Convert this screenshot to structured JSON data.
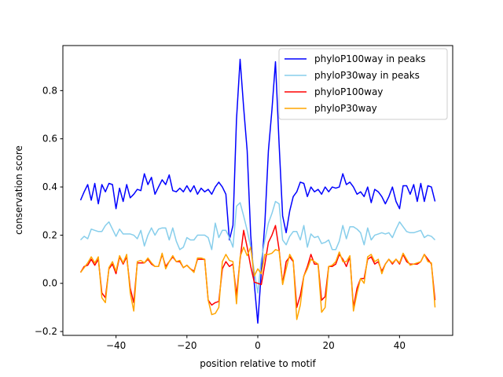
{
  "chart_data": {
    "type": "line",
    "title": "",
    "xlabel": "position relative to motif",
    "ylabel": "conservation score",
    "xlim": [
      -55,
      55
    ],
    "ylim": [
      -0.216,
      0.987
    ],
    "xticks": [
      -40,
      -20,
      0,
      20,
      40
    ],
    "xtick_labels": [
      "−40",
      "−20",
      "0",
      "20",
      "40"
    ],
    "yticks": [
      -0.2,
      0.0,
      0.2,
      0.4,
      0.6,
      0.8
    ],
    "ytick_labels": [
      "−0.2",
      "0.0",
      "0.2",
      "0.4",
      "0.6",
      "0.8"
    ],
    "grid": false,
    "legend_position": "top-right",
    "x_start": -50,
    "x_step": 1,
    "series": [
      {
        "name": "phyloP100way in peaks",
        "color": "#0000ff",
        "values": [
          0.345,
          0.38,
          0.41,
          0.345,
          0.415,
          0.33,
          0.41,
          0.38,
          0.415,
          0.41,
          0.31,
          0.395,
          0.34,
          0.41,
          0.355,
          0.37,
          0.39,
          0.385,
          0.455,
          0.41,
          0.44,
          0.37,
          0.4,
          0.43,
          0.41,
          0.45,
          0.385,
          0.38,
          0.395,
          0.38,
          0.405,
          0.38,
          0.405,
          0.37,
          0.395,
          0.38,
          0.39,
          0.37,
          0.4,
          0.42,
          0.4,
          0.37,
          0.18,
          0.24,
          0.68,
          0.93,
          0.73,
          0.55,
          0.2,
          0.0,
          -0.165,
          0.05,
          0.25,
          0.55,
          0.72,
          0.92,
          0.58,
          0.28,
          0.21,
          0.3,
          0.36,
          0.38,
          0.42,
          0.415,
          0.36,
          0.4,
          0.38,
          0.39,
          0.37,
          0.4,
          0.38,
          0.4,
          0.395,
          0.4,
          0.455,
          0.41,
          0.42,
          0.4,
          0.37,
          0.38,
          0.36,
          0.4,
          0.335,
          0.39,
          0.38,
          0.36,
          0.33,
          0.36,
          0.4,
          0.34,
          0.31,
          0.405,
          0.405,
          0.37,
          0.41,
          0.34,
          0.415,
          0.34,
          0.405,
          0.4,
          0.34
        ]
      },
      {
        "name": "phyloP30way in peaks",
        "color": "#87ceeb",
        "values": [
          0.18,
          0.195,
          0.185,
          0.225,
          0.22,
          0.215,
          0.215,
          0.24,
          0.255,
          0.225,
          0.195,
          0.225,
          0.205,
          0.205,
          0.205,
          0.2,
          0.185,
          0.22,
          0.155,
          0.2,
          0.23,
          0.2,
          0.225,
          0.23,
          0.23,
          0.18,
          0.23,
          0.175,
          0.14,
          0.15,
          0.19,
          0.18,
          0.18,
          0.2,
          0.2,
          0.2,
          0.19,
          0.14,
          0.25,
          0.19,
          0.22,
          0.22,
          0.19,
          0.15,
          0.32,
          0.335,
          0.28,
          0.22,
          0.15,
          0.05,
          -0.04,
          0.1,
          0.18,
          0.25,
          0.29,
          0.34,
          0.33,
          0.18,
          0.16,
          0.195,
          0.215,
          0.215,
          0.18,
          0.24,
          0.15,
          0.205,
          0.19,
          0.195,
          0.165,
          0.17,
          0.18,
          0.14,
          0.14,
          0.175,
          0.24,
          0.185,
          0.235,
          0.235,
          0.225,
          0.21,
          0.16,
          0.23,
          0.18,
          0.2,
          0.205,
          0.21,
          0.205,
          0.21,
          0.19,
          0.225,
          0.255,
          0.235,
          0.215,
          0.21,
          0.21,
          0.215,
          0.22,
          0.19,
          0.2,
          0.195,
          0.18
        ]
      },
      {
        "name": "phyloP100way",
        "color": "#ff0000",
        "values": [
          0.045,
          0.07,
          0.075,
          0.1,
          0.075,
          0.1,
          -0.04,
          -0.06,
          0.06,
          0.08,
          0.04,
          0.11,
          0.08,
          0.11,
          -0.02,
          -0.08,
          0.085,
          0.085,
          0.085,
          0.1,
          0.08,
          0.07,
          0.07,
          0.12,
          0.07,
          0.09,
          0.11,
          0.09,
          0.09,
          0.065,
          0.075,
          0.06,
          0.05,
          0.1,
          0.1,
          0.1,
          -0.07,
          -0.09,
          -0.08,
          -0.075,
          0.06,
          0.09,
          0.07,
          0.08,
          -0.05,
          0.1,
          0.22,
          0.15,
          0.07,
          0.005,
          0.0,
          -0.005,
          0.08,
          0.17,
          0.2,
          0.24,
          0.14,
          0.0,
          0.09,
          0.11,
          0.09,
          -0.1,
          -0.05,
          0.03,
          0.07,
          0.12,
          0.08,
          0.08,
          -0.07,
          -0.055,
          0.07,
          0.07,
          0.08,
          0.12,
          0.1,
          0.07,
          0.11,
          -0.1,
          -0.02,
          0.02,
          0.02,
          0.1,
          0.11,
          0.08,
          0.09,
          0.05,
          0.08,
          0.1,
          0.08,
          0.1,
          0.08,
          0.12,
          0.09,
          0.08,
          0.08,
          0.08,
          0.09,
          0.12,
          0.1,
          0.08,
          -0.07
        ]
      },
      {
        "name": "phyloP30way",
        "color": "#ffa500",
        "values": [
          0.045,
          0.065,
          0.085,
          0.11,
          0.085,
          0.11,
          -0.06,
          -0.08,
          0.065,
          0.09,
          0.05,
          0.115,
          0.085,
          0.12,
          -0.04,
          -0.115,
          0.09,
          0.095,
          0.085,
          0.105,
          0.085,
          0.07,
          0.07,
          0.125,
          0.06,
          0.09,
          0.115,
          0.09,
          0.095,
          0.065,
          0.075,
          0.06,
          0.045,
          0.105,
          0.105,
          0.1,
          -0.07,
          -0.13,
          -0.125,
          -0.1,
          0.09,
          0.12,
          0.095,
          0.09,
          -0.085,
          0.11,
          0.15,
          0.115,
          0.15,
          0.03,
          0.06,
          0.04,
          0.12,
          0.12,
          0.125,
          0.14,
          0.135,
          -0.005,
          0.06,
          0.12,
          0.095,
          -0.15,
          -0.09,
          0.03,
          0.06,
          0.1,
          0.09,
          0.08,
          -0.12,
          -0.1,
          0.07,
          0.075,
          0.09,
          0.13,
          0.09,
          0.09,
          0.115,
          -0.115,
          -0.04,
          0.02,
          0.0,
          0.11,
          0.12,
          0.09,
          0.1,
          0.04,
          0.08,
          0.1,
          0.085,
          0.1,
          0.085,
          0.125,
          0.1,
          0.075,
          0.08,
          0.085,
          0.09,
          0.12,
          0.09,
          0.085,
          -0.1
        ]
      }
    ]
  }
}
